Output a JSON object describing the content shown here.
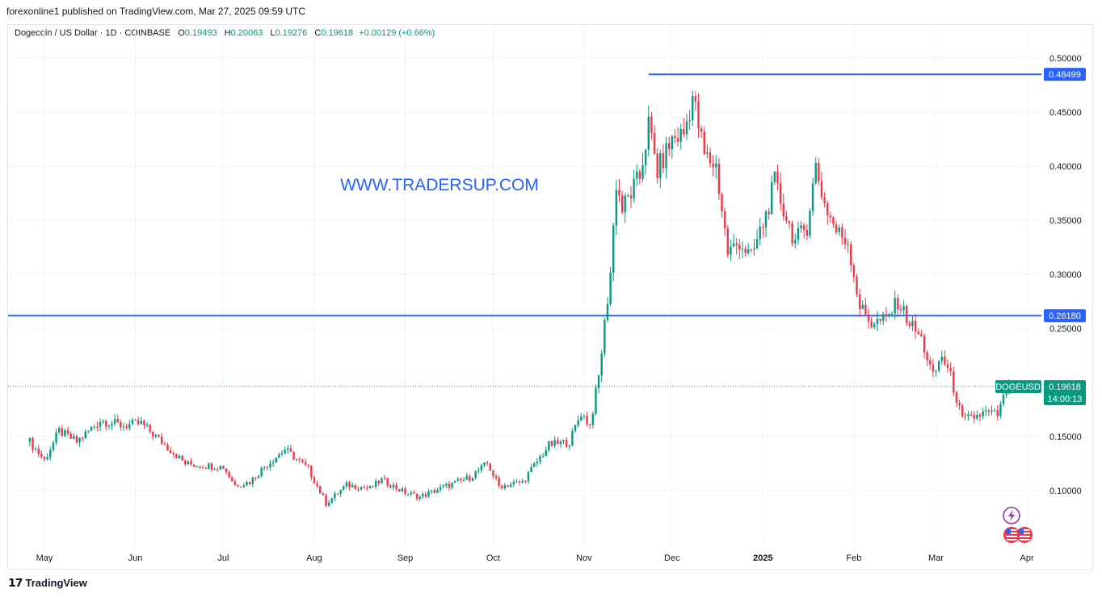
{
  "header": {
    "published": "forexonline1 published on TradingView.com, Mar 27, 2025 09:59 UTC"
  },
  "legend": {
    "symbol": "Dogecoin / US Dollar · 1D · COINBASE",
    "o_label": "O",
    "o": "0.19493",
    "h_label": "H",
    "h": "0.20063",
    "l_label": "L",
    "l": "0.19276",
    "c_label": "C",
    "c": "0.19618",
    "change": "+0.00129 (+0.66%)"
  },
  "watermark": "WWW.TRADERSUP.COM",
  "footer": {
    "brand": "TradingView"
  },
  "colors": {
    "up": "#089981",
    "down": "#f23645",
    "level": "#2962ff",
    "grid": "#f0f3fa"
  },
  "chart_data": {
    "type": "candlestick",
    "y_ticks": [
      "0.10000",
      "0.15000",
      "0.25000",
      "0.30000",
      "0.35000",
      "0.40000",
      "0.45000",
      "0.50000"
    ],
    "y_tick_values": [
      0.1,
      0.15,
      0.25,
      0.3,
      0.35,
      0.4,
      0.45,
      0.5
    ],
    "x_ticks": [
      "May",
      "Jun",
      "Jul",
      "Aug",
      "Sep",
      "Oct",
      "Nov",
      "Dec",
      "2025",
      "Feb",
      "Mar",
      "Apr"
    ],
    "ylim": [
      0.05,
      0.52
    ],
    "levels": [
      {
        "value": 0.48499,
        "label": "0.48499",
        "from": "2024-11-23"
      },
      {
        "value": 0.2618,
        "label": "0.26180",
        "from": "start"
      }
    ],
    "last_price": {
      "symbol": "DOGEUSD",
      "value": 0.19618,
      "label": "0.19618",
      "countdown": "14:00:13"
    },
    "anchors": [
      [
        "2024-04-26",
        0.145
      ],
      [
        "2024-05-01",
        0.128
      ],
      [
        "2024-05-06",
        0.155
      ],
      [
        "2024-05-12",
        0.145
      ],
      [
        "2024-05-20",
        0.165
      ],
      [
        "2024-05-28",
        0.16
      ],
      [
        "2024-06-03",
        0.162
      ],
      [
        "2024-06-10",
        0.145
      ],
      [
        "2024-06-18",
        0.125
      ],
      [
        "2024-06-25",
        0.123
      ],
      [
        "2024-07-01",
        0.122
      ],
      [
        "2024-07-05",
        0.105
      ],
      [
        "2024-07-10",
        0.108
      ],
      [
        "2024-07-15",
        0.122
      ],
      [
        "2024-07-22",
        0.138
      ],
      [
        "2024-07-30",
        0.12
      ],
      [
        "2024-08-05",
        0.088
      ],
      [
        "2024-08-12",
        0.105
      ],
      [
        "2024-08-20",
        0.102
      ],
      [
        "2024-08-24",
        0.11
      ],
      [
        "2024-09-01",
        0.098
      ],
      [
        "2024-09-06",
        0.094
      ],
      [
        "2024-09-15",
        0.104
      ],
      [
        "2024-09-23",
        0.112
      ],
      [
        "2024-09-29",
        0.125
      ],
      [
        "2024-10-03",
        0.104
      ],
      [
        "2024-10-11",
        0.108
      ],
      [
        "2024-10-20",
        0.142
      ],
      [
        "2024-10-27",
        0.145
      ],
      [
        "2024-10-31",
        0.172
      ],
      [
        "2024-11-03",
        0.16
      ],
      [
        "2024-11-06",
        0.205
      ],
      [
        "2024-11-10",
        0.302
      ],
      [
        "2024-11-12",
        0.385
      ],
      [
        "2024-11-14",
        0.36
      ],
      [
        "2024-11-20",
        0.39
      ],
      [
        "2024-11-23",
        0.438
      ],
      [
        "2024-11-26",
        0.395
      ],
      [
        "2024-12-01",
        0.425
      ],
      [
        "2024-12-05",
        0.43
      ],
      [
        "2024-12-08",
        0.465
      ],
      [
        "2024-12-12",
        0.41
      ],
      [
        "2024-12-16",
        0.4
      ],
      [
        "2024-12-20",
        0.32
      ],
      [
        "2024-12-24",
        0.33
      ],
      [
        "2024-12-28",
        0.315
      ],
      [
        "2025-01-02",
        0.355
      ],
      [
        "2025-01-05",
        0.385
      ],
      [
        "2025-01-08",
        0.36
      ],
      [
        "2025-01-12",
        0.33
      ],
      [
        "2025-01-16",
        0.345
      ],
      [
        "2025-01-19",
        0.4
      ],
      [
        "2025-01-22",
        0.365
      ],
      [
        "2025-01-26",
        0.34
      ],
      [
        "2025-01-30",
        0.33
      ],
      [
        "2025-02-03",
        0.27
      ],
      [
        "2025-02-07",
        0.255
      ],
      [
        "2025-02-12",
        0.258
      ],
      [
        "2025-02-16",
        0.275
      ],
      [
        "2025-02-20",
        0.255
      ],
      [
        "2025-02-24",
        0.24
      ],
      [
        "2025-02-28",
        0.205
      ],
      [
        "2025-03-03",
        0.225
      ],
      [
        "2025-03-06",
        0.205
      ],
      [
        "2025-03-10",
        0.165
      ],
      [
        "2025-03-14",
        0.168
      ],
      [
        "2025-03-18",
        0.172
      ],
      [
        "2025-03-22",
        0.17
      ],
      [
        "2025-03-25",
        0.192
      ],
      [
        "2025-03-27",
        0.19618
      ]
    ]
  }
}
